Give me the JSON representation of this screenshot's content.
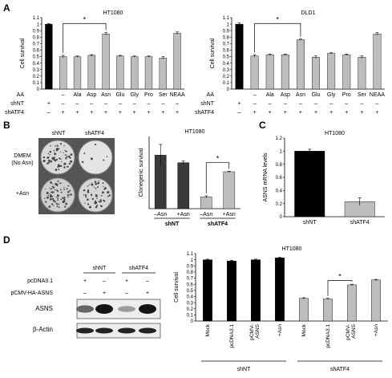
{
  "colors": {
    "black_bar": "#000000",
    "dark_bar": "#3a3a3a",
    "gray_bar": "#bdbdbd",
    "dish_bg": "#5a5a5a"
  },
  "panels": {
    "A": "A",
    "B": "B",
    "C": "C",
    "D": "D"
  },
  "row_labels": {
    "AA": "AA",
    "shNT": "shNT",
    "shATF4": "shATF4",
    "plus": "+",
    "minus": "−"
  },
  "sigmark": "*",
  "chart_data": [
    {
      "id": "A1",
      "type": "bar",
      "title": "HT1080",
      "ylabel": "Cell survival",
      "ylim": [
        0,
        1.1
      ],
      "yticks": [
        "0",
        "0.1",
        "0.2",
        "0.3",
        "0.4",
        "0.5",
        "0.6",
        "0.7",
        "0.8",
        "0.9",
        "1",
        "1.1"
      ],
      "categories": [
        "",
        "–",
        "Ala",
        "Asp",
        "Asn",
        "Glu",
        "Gly",
        "Pro",
        "Ser",
        "NEAA"
      ],
      "values": [
        1.0,
        0.5,
        0.5,
        0.52,
        0.85,
        0.51,
        0.5,
        0.5,
        0.48,
        0.86
      ],
      "errors": [
        0.01,
        0.02,
        0.01,
        0.01,
        0.02,
        0.01,
        0.01,
        0.01,
        0.02,
        0.02
      ],
      "bar_colors": [
        "black",
        "gray",
        "gray",
        "gray",
        "gray",
        "gray",
        "gray",
        "gray",
        "gray",
        "gray"
      ],
      "shNT": [
        "+",
        "–",
        "–",
        "–",
        "–",
        "–",
        "–",
        "–",
        "–",
        "–"
      ],
      "shATF4": [
        "–",
        "+",
        "+",
        "+",
        "+",
        "+",
        "+",
        "+",
        "+",
        "+"
      ],
      "significance": [
        1,
        4
      ]
    },
    {
      "id": "A2",
      "type": "bar",
      "title": "DLD1",
      "ylabel": "Cell survival",
      "ylim": [
        0,
        1.1
      ],
      "yticks": [
        "0",
        "0.1",
        "0.2",
        "0.3",
        "0.4",
        "0.5",
        "0.6",
        "0.7",
        "0.8",
        "0.9",
        "1",
        "1.1"
      ],
      "categories": [
        "",
        "–",
        "Ala",
        "Asp",
        "Asn",
        "Glu",
        "Gly",
        "Pro",
        "Ser",
        "NEAA"
      ],
      "values": [
        1.0,
        0.51,
        0.53,
        0.53,
        0.76,
        0.49,
        0.55,
        0.53,
        0.49,
        0.85
      ],
      "errors": [
        0.02,
        0.02,
        0.01,
        0.01,
        0.01,
        0.02,
        0.01,
        0.01,
        0.02,
        0.02
      ],
      "bar_colors": [
        "black",
        "gray",
        "gray",
        "gray",
        "gray",
        "gray",
        "gray",
        "gray",
        "gray",
        "gray"
      ],
      "shNT": [
        "+",
        "–",
        "–",
        "–",
        "–",
        "–",
        "–",
        "–",
        "–",
        "–"
      ],
      "shATF4": [
        "–",
        "+",
        "+",
        "+",
        "+",
        "+",
        "+",
        "+",
        "+",
        "+"
      ],
      "significance": [
        1,
        4
      ]
    },
    {
      "id": "B",
      "type": "bar",
      "title": "HT1080",
      "ylabel": "Clonegenic survival",
      "categories": [
        "–Asn",
        "+Asn",
        "–Asn",
        "+Asn"
      ],
      "values": [
        1.0,
        0.86,
        0.22,
        0.69
      ],
      "errors": [
        0.2,
        0.03,
        0.02,
        0.01
      ],
      "bar_colors": [
        "dark",
        "dark",
        "gray",
        "gray"
      ],
      "groups": [
        "shNT",
        "shATF4"
      ],
      "significance": [
        2,
        3
      ]
    },
    {
      "id": "C",
      "type": "bar",
      "title": "HT1080",
      "ylabel": "ASNS mRNA levels",
      "ylim": [
        0,
        1.2
      ],
      "yticks": [
        "0",
        "0.2",
        "0.4",
        "0.6",
        "0.8",
        "1",
        "1.2"
      ],
      "categories": [
        "shNT",
        "shATF4"
      ],
      "values": [
        1.0,
        0.23
      ],
      "errors": [
        0.03,
        0.06
      ],
      "bar_colors": [
        "black",
        "gray"
      ]
    },
    {
      "id": "D",
      "type": "bar",
      "title": "HT1080",
      "ylabel": "Cell survival",
      "ylim": [
        0,
        1.1
      ],
      "yticks": [
        "0",
        "0.1",
        "0.2",
        "0.3",
        "0.4",
        "0.5",
        "0.6",
        "0.7",
        "0.8",
        "0.9",
        "1",
        "1.1"
      ],
      "categories": [
        "Mock",
        "pcDNA3.1",
        "pCMV-ASNS",
        "+Asn",
        "Mock",
        "pcDNA3.1",
        "pCMV-ASNS",
        "+Asn"
      ],
      "values": [
        1.0,
        0.98,
        1.0,
        1.03,
        0.37,
        0.36,
        0.59,
        0.67
      ],
      "errors": [
        0.01,
        0.01,
        0.01,
        0.01,
        0.01,
        0.01,
        0.01,
        0.01
      ],
      "bar_colors": [
        "black",
        "black",
        "black",
        "black",
        "gray",
        "gray",
        "gray",
        "gray"
      ],
      "groups": [
        "shNT",
        "shATF4"
      ],
      "significance": [
        5,
        6
      ]
    }
  ],
  "panelB": {
    "col_labels": [
      "shNT",
      "shATF4"
    ],
    "row_labels": [
      "DMEM",
      "(No Asn)",
      "+Asn"
    ]
  },
  "panelD_blot": {
    "group_labels": [
      "shNT",
      "shATF4"
    ],
    "row_labels": [
      "pcDNA3.1",
      "pCMV-HA-ASNS",
      "ASNS",
      "β-Actin"
    ],
    "pcDNA": [
      "+",
      "–",
      "+",
      "–"
    ],
    "pCMV": [
      "–",
      "+",
      "–",
      "+"
    ]
  }
}
